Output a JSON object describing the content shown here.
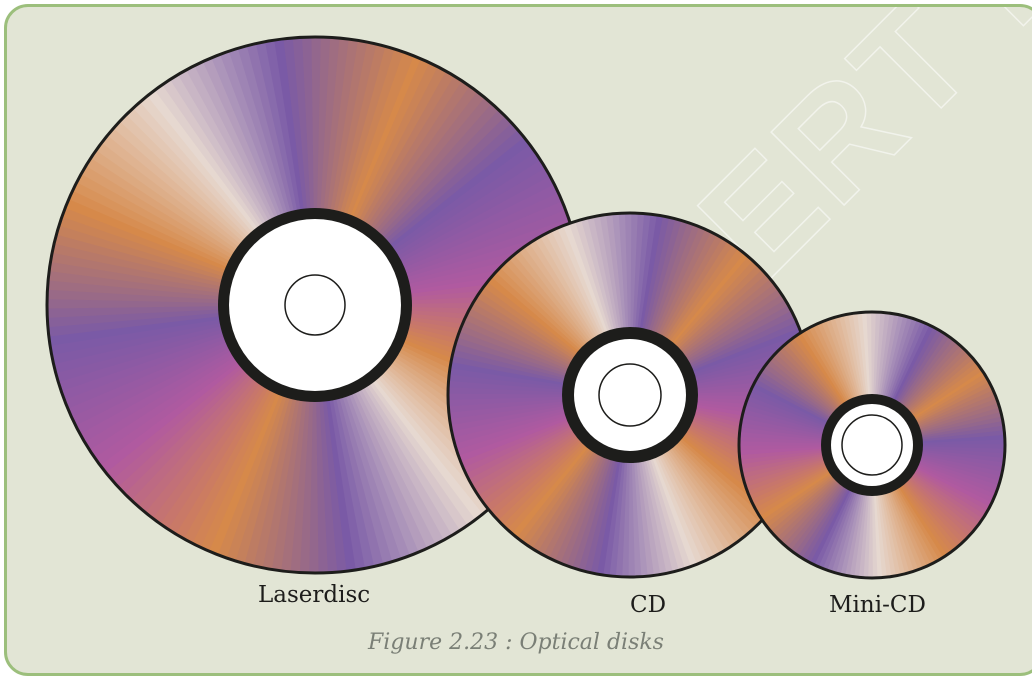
{
  "figure": {
    "caption": "Figure 2.23 : Optical disks",
    "watermark": "NCERT Republish"
  },
  "disks": [
    {
      "name": "Laserdisc"
    },
    {
      "name": "CD"
    },
    {
      "name": "Mini-CD"
    }
  ],
  "colors": {
    "panel_background": "#e2e5d5",
    "panel_border": "#9cbf7c",
    "disk_orange": "#d6894a",
    "disk_purple": "#7a5aa6",
    "disk_magenta": "#b05aa0",
    "disk_pale": "#e6d8d0",
    "hub_ring": "#1d1d1b",
    "hub_center": "#ffffff"
  }
}
